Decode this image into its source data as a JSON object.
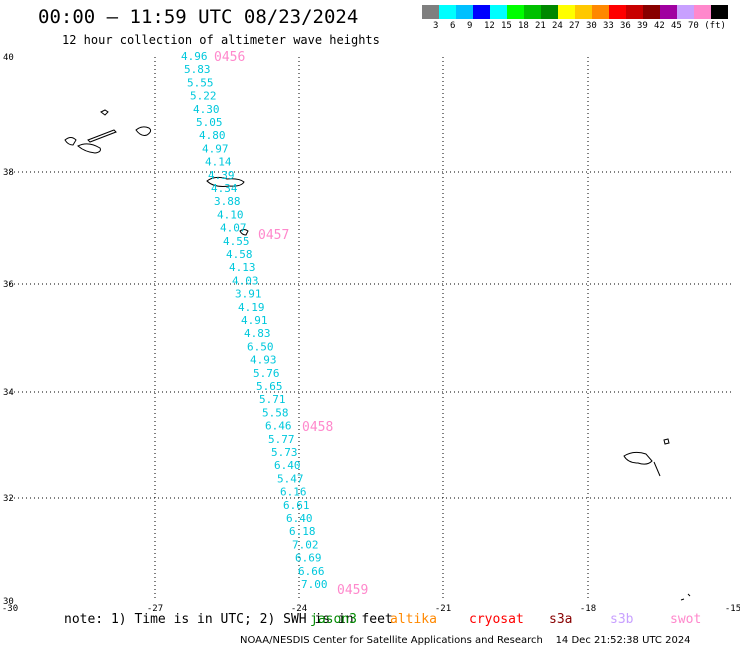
{
  "header": {
    "title": "00:00 — 11:59 UTC 08/23/2024",
    "subtitle": "12 hour collection of altimeter wave heights"
  },
  "scale": {
    "colors": [
      "#7f7f7f",
      "#00ffff",
      "#00c0ff",
      "#0000ff",
      "#00ffff",
      "#00ff00",
      "#00c000",
      "#008800",
      "#ffff00",
      "#ffc800",
      "#ff8800",
      "#ff0000",
      "#c80000",
      "#880000",
      "#a000a0",
      "#c8a0ff",
      "#ff88cc",
      "#000000"
    ],
    "labels": [
      "3",
      "6",
      "9",
      "12",
      "15",
      "18",
      "21",
      "24",
      "27",
      "30",
      "33",
      "36",
      "39",
      "42",
      "45",
      "70 (ft)"
    ]
  },
  "axes": {
    "lat_labels": [
      "40",
      "38",
      "36",
      "34",
      "32",
      "30"
    ],
    "lon_labels": [
      "-30",
      "-27",
      "-24",
      "-21",
      "-18",
      "-15"
    ]
  },
  "passes": [
    {
      "id": "0456"
    },
    {
      "id": "0457"
    },
    {
      "id": "0458"
    },
    {
      "id": "0459"
    }
  ],
  "wave_heights": [
    "4.96",
    "5.83",
    "5.55",
    "5.22",
    "4.30",
    "5.05",
    "4.80",
    "4.97",
    "4.14",
    "4.39",
    "4.34",
    "3.88",
    "4.10",
    "4.07",
    "4.55",
    "4.58",
    "4.13",
    "4.03",
    "3.91",
    "4.19",
    "4.91",
    "4.83",
    "6.50",
    "4.93",
    "5.76",
    "5.65",
    "5.71",
    "5.58",
    "6.46",
    "5.77",
    "5.73",
    "6.40",
    "5.47",
    "6.16",
    "6.61",
    "6.40",
    "6.18",
    "7.02",
    "6.69",
    "6.66",
    "7.00"
  ],
  "footer": {
    "note": "note: 1) Time is in UTC; 2) SWH is in feet",
    "satellites": [
      {
        "name": "jason3",
        "color": "#008800"
      },
      {
        "name": "altika",
        "color": "#ff8800"
      },
      {
        "name": "cryosat",
        "color": "#ff0000"
      },
      {
        "name": "s3a",
        "color": "#880000"
      },
      {
        "name": "s3b",
        "color": "#c8a0ff"
      },
      {
        "name": "swot",
        "color": "#ff88cc"
      }
    ],
    "credit": "NOAA/NESDIS Center for Satellite Applications and Research    14 Dec 21:52:38 UTC 2024"
  }
}
